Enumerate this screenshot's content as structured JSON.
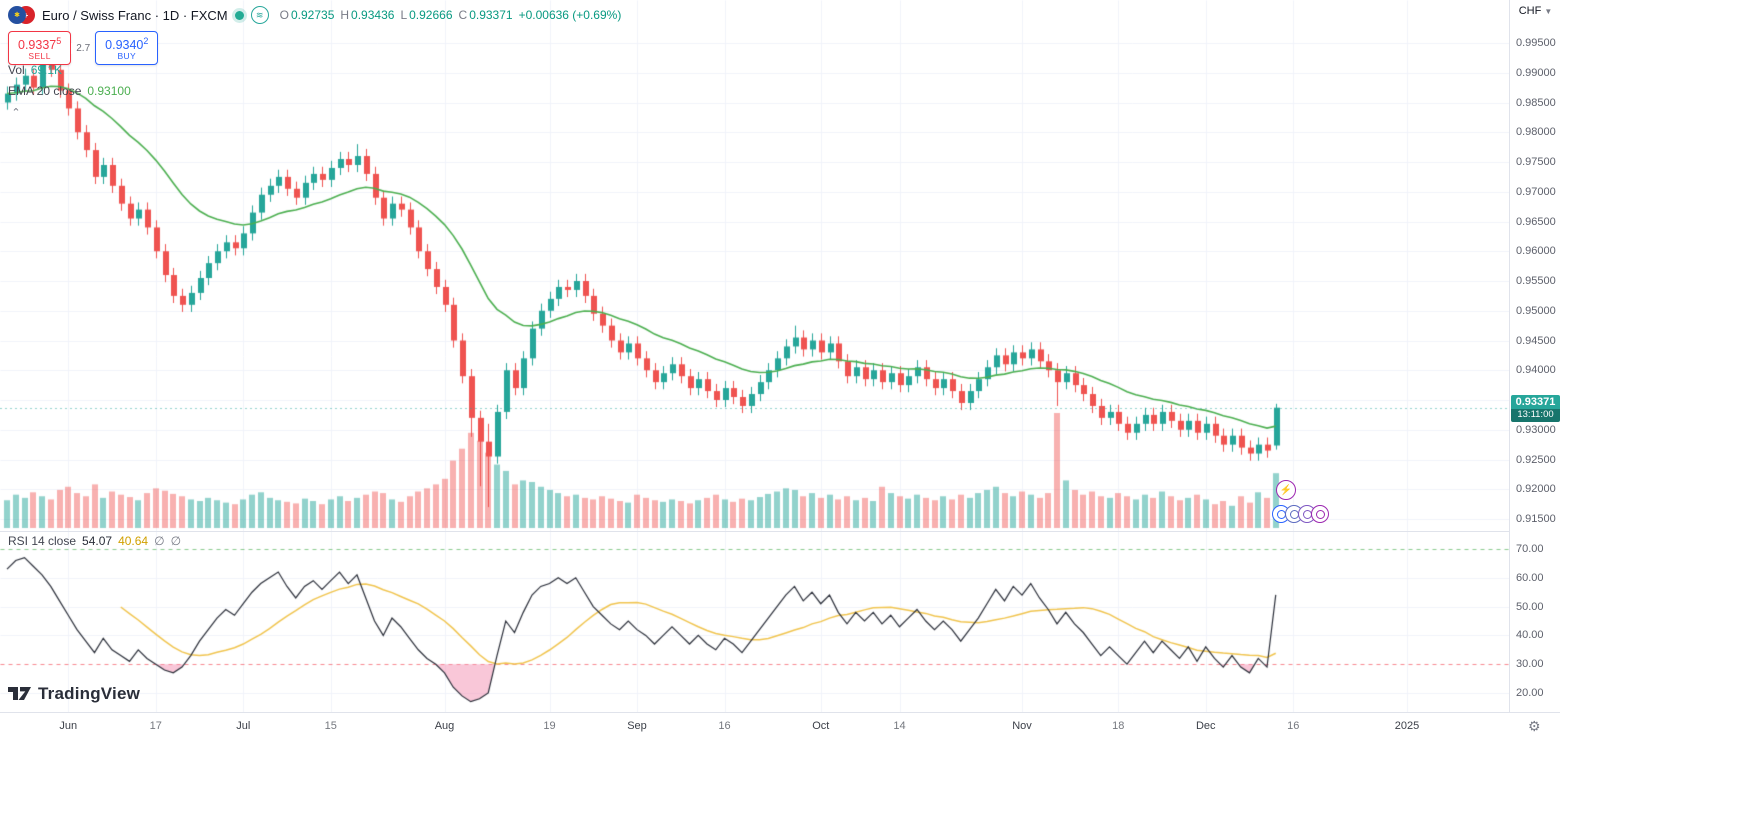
{
  "header": {
    "title": "Euro / Swiss Franc · 1D · FXCM",
    "ohlc": {
      "o_label": "O",
      "o": "0.92735",
      "h_label": "H",
      "h": "0.93436",
      "l_label": "L",
      "l": "0.92666",
      "c_label": "C",
      "c": "0.93371",
      "change": "+0.00636 (+0.69%)"
    },
    "eur_icon_glyph": "✱",
    "chf_icon_glyph": "+",
    "wave_icon_glyph": "≋"
  },
  "trade_panel": {
    "sell_price": "0.9337",
    "sell_sup": "5",
    "sell_label": "SELL",
    "spread": "2.7",
    "buy_price": "0.9340",
    "buy_sup": "2",
    "buy_label": "BUY"
  },
  "legends": {
    "volume": {
      "label": "Vol",
      "value": "69.1K"
    },
    "ema": {
      "label": "EMA 20 close",
      "value": "0.93100"
    },
    "rsi": {
      "label": "RSI 14 close",
      "value": "54.07",
      "ma_value": "40.64",
      "hidden_icon": "∅"
    },
    "collapse_icon": "⌃"
  },
  "price_scale": {
    "currency": "CHF",
    "caret_icon": "▼",
    "labels": [
      "0.99500",
      "0.99000",
      "0.98500",
      "0.98000",
      "0.97500",
      "0.97000",
      "0.96500",
      "0.96000",
      "0.95500",
      "0.95000",
      "0.94500",
      "0.94000",
      "0.93500",
      "0.93000",
      "0.92500",
      "0.92000",
      "0.91500"
    ],
    "current_price": "0.93371",
    "countdown": "13:11:00"
  },
  "rsi_scale": {
    "labels": [
      "70.00",
      "60.00",
      "50.00",
      "40.00",
      "30.00",
      "20.00"
    ]
  },
  "time_axis": {
    "ticks": [
      {
        "label": "Jun",
        "i": 7,
        "major": true
      },
      {
        "label": "17",
        "i": 17,
        "major": false
      },
      {
        "label": "Jul",
        "i": 27,
        "major": true
      },
      {
        "label": "15",
        "i": 37,
        "major": false
      },
      {
        "label": "Aug",
        "i": 50,
        "major": true
      },
      {
        "label": "19",
        "i": 62,
        "major": false
      },
      {
        "label": "Sep",
        "i": 72,
        "major": true
      },
      {
        "label": "16",
        "i": 82,
        "major": false
      },
      {
        "label": "Oct",
        "i": 93,
        "major": true
      },
      {
        "label": "14",
        "i": 102,
        "major": false
      },
      {
        "label": "Nov",
        "i": 116,
        "major": true
      },
      {
        "label": "18",
        "i": 127,
        "major": false
      },
      {
        "label": "Dec",
        "i": 137,
        "major": true
      },
      {
        "label": "16",
        "i": 147,
        "major": false
      },
      {
        "label": "2025",
        "i": 160,
        "major": true
      }
    ]
  },
  "watermark": {
    "text": "TradingView"
  },
  "floating_tools": {
    "flash_icon": "⚡"
  },
  "settings_icon": "⚙",
  "chart_data": {
    "type": "candlestick",
    "title": "Euro / Swiss Franc · 1D · FXCM",
    "symbol": "EUR/CHF",
    "timeframe": "1D",
    "exchange": "FXCM",
    "price_axis_visible_range": [
      0.915,
      0.995
    ],
    "rsi_axis_visible_range": [
      20,
      70
    ],
    "indicators": {
      "ema_period": 20,
      "rsi_period": 14,
      "rsi_ma_period": 14,
      "rsi_upper": 70,
      "rsi_lower": 30
    },
    "colors": {
      "up": "#26a69a",
      "down": "#ef5350",
      "vol_up": "rgba(38,166,154,0.5)",
      "vol_down": "rgba(239,83,80,0.45)",
      "ema": "#4caf50",
      "rsi": "#2a2e39",
      "rsi_ma": "#f0c44e",
      "rsi_upper": "rgba(76,175,80,0.65)",
      "rsi_lower": "rgba(242,54,69,0.6)",
      "rsi_fill": "rgba(244,143,177,0.5)",
      "price_line": "#26a69a",
      "grid": "#f0f3fa",
      "axis_text": "#5d606b",
      "accent_sell": "#f23645",
      "accent_buy": "#2962ff",
      "value_green": "#089981"
    },
    "candles": [
      [
        0.985,
        0.9877,
        0.9838,
        0.9865
      ],
      [
        0.9865,
        0.9892,
        0.9853,
        0.988
      ],
      [
        0.988,
        0.9907,
        0.9868,
        0.9895
      ],
      [
        0.9895,
        0.9907,
        0.9863,
        0.9875
      ],
      [
        0.9875,
        0.9935,
        0.9863,
        0.992
      ],
      [
        0.992,
        0.9932,
        0.9893,
        0.9905
      ],
      [
        0.9905,
        0.9917,
        0.9858,
        0.987
      ],
      [
        0.987,
        0.9882,
        0.9828,
        0.984
      ],
      [
        0.984,
        0.9852,
        0.9788,
        0.98
      ],
      [
        0.98,
        0.9812,
        0.9758,
        0.977
      ],
      [
        0.977,
        0.9782,
        0.9713,
        0.9725
      ],
      [
        0.9725,
        0.9757,
        0.9713,
        0.9745
      ],
      [
        0.9745,
        0.9757,
        0.9698,
        0.971
      ],
      [
        0.971,
        0.9722,
        0.9668,
        0.968
      ],
      [
        0.968,
        0.9692,
        0.9643,
        0.9655
      ],
      [
        0.9655,
        0.9682,
        0.9643,
        0.967
      ],
      [
        0.967,
        0.9682,
        0.9628,
        0.964
      ],
      [
        0.964,
        0.9652,
        0.9588,
        0.96
      ],
      [
        0.96,
        0.9612,
        0.9548,
        0.956
      ],
      [
        0.956,
        0.9572,
        0.9513,
        0.9525
      ],
      [
        0.9525,
        0.9537,
        0.9498,
        0.951
      ],
      [
        0.951,
        0.9542,
        0.9498,
        0.953
      ],
      [
        0.953,
        0.9567,
        0.9518,
        0.9555
      ],
      [
        0.9555,
        0.9592,
        0.9543,
        0.958
      ],
      [
        0.958,
        0.9612,
        0.9568,
        0.96
      ],
      [
        0.96,
        0.9627,
        0.9588,
        0.9615
      ],
      [
        0.9615,
        0.9627,
        0.9593,
        0.9605
      ],
      [
        0.9605,
        0.9642,
        0.9593,
        0.963
      ],
      [
        0.963,
        0.9677,
        0.9618,
        0.9665
      ],
      [
        0.9665,
        0.9707,
        0.9653,
        0.9695
      ],
      [
        0.9695,
        0.9722,
        0.9683,
        0.971
      ],
      [
        0.971,
        0.9737,
        0.9698,
        0.9725
      ],
      [
        0.9725,
        0.9737,
        0.9693,
        0.9705
      ],
      [
        0.9705,
        0.9717,
        0.9678,
        0.969
      ],
      [
        0.969,
        0.9727,
        0.9678,
        0.9715
      ],
      [
        0.9715,
        0.9742,
        0.9703,
        0.973
      ],
      [
        0.973,
        0.9742,
        0.9708,
        0.972
      ],
      [
        0.972,
        0.9752,
        0.9708,
        0.974
      ],
      [
        0.974,
        0.9767,
        0.9728,
        0.9755
      ],
      [
        0.9755,
        0.9767,
        0.9733,
        0.9745
      ],
      [
        0.9745,
        0.978,
        0.9733,
        0.976
      ],
      [
        0.976,
        0.9772,
        0.9718,
        0.973
      ],
      [
        0.973,
        0.9742,
        0.9678,
        0.969
      ],
      [
        0.969,
        0.9702,
        0.9643,
        0.9655
      ],
      [
        0.9655,
        0.9692,
        0.9643,
        0.968
      ],
      [
        0.968,
        0.9692,
        0.9658,
        0.967
      ],
      [
        0.967,
        0.9682,
        0.9628,
        0.964
      ],
      [
        0.964,
        0.9652,
        0.9588,
        0.96
      ],
      [
        0.96,
        0.9612,
        0.9558,
        0.957
      ],
      [
        0.957,
        0.9582,
        0.9528,
        0.954
      ],
      [
        0.954,
        0.9552,
        0.9498,
        0.951
      ],
      [
        0.951,
        0.9522,
        0.9438,
        0.945
      ],
      [
        0.945,
        0.9462,
        0.9378,
        0.939
      ],
      [
        0.939,
        0.9402,
        0.9288,
        0.932
      ],
      [
        0.932,
        0.9332,
        0.9205,
        0.928
      ],
      [
        0.928,
        0.931,
        0.917,
        0.9255
      ],
      [
        0.9255,
        0.9342,
        0.9243,
        0.933
      ],
      [
        0.933,
        0.9412,
        0.9318,
        0.94
      ],
      [
        0.94,
        0.9412,
        0.9358,
        0.937
      ],
      [
        0.937,
        0.9432,
        0.9358,
        0.942
      ],
      [
        0.942,
        0.9482,
        0.9408,
        0.947
      ],
      [
        0.947,
        0.9512,
        0.9458,
        0.95
      ],
      [
        0.95,
        0.9532,
        0.9488,
        0.952
      ],
      [
        0.952,
        0.9552,
        0.9508,
        0.954
      ],
      [
        0.954,
        0.9552,
        0.9523,
        0.9535
      ],
      [
        0.9535,
        0.9562,
        0.9523,
        0.955
      ],
      [
        0.955,
        0.9562,
        0.9513,
        0.9525
      ],
      [
        0.9525,
        0.9537,
        0.9483,
        0.9495
      ],
      [
        0.9495,
        0.9507,
        0.9463,
        0.9475
      ],
      [
        0.9475,
        0.9487,
        0.9438,
        0.945
      ],
      [
        0.945,
        0.9462,
        0.9418,
        0.943
      ],
      [
        0.943,
        0.9457,
        0.9418,
        0.9445
      ],
      [
        0.9445,
        0.9457,
        0.9408,
        0.942
      ],
      [
        0.942,
        0.9432,
        0.9388,
        0.94
      ],
      [
        0.94,
        0.9412,
        0.9368,
        0.938
      ],
      [
        0.938,
        0.9407,
        0.9368,
        0.9395
      ],
      [
        0.9395,
        0.9422,
        0.9383,
        0.941
      ],
      [
        0.941,
        0.9422,
        0.9378,
        0.939
      ],
      [
        0.939,
        0.9402,
        0.9358,
        0.937
      ],
      [
        0.937,
        0.9397,
        0.9358,
        0.9385
      ],
      [
        0.9385,
        0.9397,
        0.9353,
        0.9365
      ],
      [
        0.9365,
        0.9377,
        0.9338,
        0.935
      ],
      [
        0.935,
        0.9382,
        0.9338,
        0.937
      ],
      [
        0.937,
        0.9382,
        0.9343,
        0.9355
      ],
      [
        0.9355,
        0.9367,
        0.9328,
        0.934
      ],
      [
        0.934,
        0.9372,
        0.9328,
        0.936
      ],
      [
        0.936,
        0.9392,
        0.9348,
        0.938
      ],
      [
        0.938,
        0.9412,
        0.9368,
        0.94
      ],
      [
        0.94,
        0.9432,
        0.9388,
        0.942
      ],
      [
        0.942,
        0.9452,
        0.9408,
        0.944
      ],
      [
        0.944,
        0.9475,
        0.9428,
        0.9455
      ],
      [
        0.9455,
        0.9467,
        0.9423,
        0.9435
      ],
      [
        0.9435,
        0.9462,
        0.9423,
        0.945
      ],
      [
        0.945,
        0.9462,
        0.9418,
        0.943
      ],
      [
        0.943,
        0.9457,
        0.9418,
        0.9445
      ],
      [
        0.9445,
        0.9457,
        0.9403,
        0.9415
      ],
      [
        0.9415,
        0.9427,
        0.9378,
        0.939
      ],
      [
        0.939,
        0.9417,
        0.9378,
        0.9405
      ],
      [
        0.9405,
        0.9417,
        0.9373,
        0.9385
      ],
      [
        0.9385,
        0.9412,
        0.9373,
        0.94
      ],
      [
        0.94,
        0.9412,
        0.9368,
        0.938
      ],
      [
        0.938,
        0.9407,
        0.9368,
        0.9395
      ],
      [
        0.9395,
        0.9407,
        0.9363,
        0.9375
      ],
      [
        0.9375,
        0.9402,
        0.9363,
        0.939
      ],
      [
        0.939,
        0.9417,
        0.9378,
        0.9405
      ],
      [
        0.9405,
        0.9417,
        0.9373,
        0.9385
      ],
      [
        0.9385,
        0.9397,
        0.9358,
        0.937
      ],
      [
        0.937,
        0.9397,
        0.9358,
        0.9385
      ],
      [
        0.9385,
        0.9397,
        0.9353,
        0.9365
      ],
      [
        0.9365,
        0.9377,
        0.9333,
        0.9345
      ],
      [
        0.9345,
        0.9377,
        0.9333,
        0.9365
      ],
      [
        0.9365,
        0.9397,
        0.9353,
        0.9385
      ],
      [
        0.9385,
        0.9417,
        0.9373,
        0.9405
      ],
      [
        0.9405,
        0.9437,
        0.9393,
        0.9425
      ],
      [
        0.9425,
        0.9437,
        0.9398,
        0.941
      ],
      [
        0.941,
        0.9442,
        0.9398,
        0.943
      ],
      [
        0.943,
        0.9442,
        0.9408,
        0.942
      ],
      [
        0.942,
        0.9447,
        0.9408,
        0.9435
      ],
      [
        0.9435,
        0.9447,
        0.9403,
        0.9415
      ],
      [
        0.9415,
        0.9427,
        0.9388,
        0.94
      ],
      [
        0.94,
        0.9412,
        0.934,
        0.938
      ],
      [
        0.938,
        0.9407,
        0.9368,
        0.9395
      ],
      [
        0.9395,
        0.9407,
        0.9363,
        0.9375
      ],
      [
        0.9375,
        0.9387,
        0.9348,
        0.936
      ],
      [
        0.936,
        0.9372,
        0.9328,
        0.934
      ],
      [
        0.934,
        0.9352,
        0.9308,
        0.932
      ],
      [
        0.932,
        0.9342,
        0.9308,
        0.933
      ],
      [
        0.933,
        0.9342,
        0.9298,
        0.931
      ],
      [
        0.931,
        0.9322,
        0.9283,
        0.9295
      ],
      [
        0.9295,
        0.9322,
        0.9283,
        0.931
      ],
      [
        0.931,
        0.9337,
        0.9298,
        0.9325
      ],
      [
        0.9325,
        0.9337,
        0.9298,
        0.931
      ],
      [
        0.931,
        0.9342,
        0.9298,
        0.933
      ],
      [
        0.933,
        0.9342,
        0.9303,
        0.9315
      ],
      [
        0.9315,
        0.9327,
        0.9288,
        0.93
      ],
      [
        0.93,
        0.9327,
        0.9288,
        0.9315
      ],
      [
        0.9315,
        0.9327,
        0.9283,
        0.9295
      ],
      [
        0.9295,
        0.9322,
        0.9283,
        0.931
      ],
      [
        0.931,
        0.9322,
        0.9278,
        0.929
      ],
      [
        0.929,
        0.9302,
        0.9263,
        0.9275
      ],
      [
        0.9275,
        0.9302,
        0.9263,
        0.929
      ],
      [
        0.929,
        0.9302,
        0.9258,
        0.927
      ],
      [
        0.927,
        0.9282,
        0.9248,
        0.926
      ],
      [
        0.926,
        0.9287,
        0.9248,
        0.9275
      ],
      [
        0.9275,
        0.9287,
        0.9253,
        0.9265
      ],
      [
        0.92735,
        0.93436,
        0.92666,
        0.93371
      ]
    ],
    "volume": [
      35,
      42,
      38,
      45,
      40,
      36,
      48,
      52,
      44,
      40,
      55,
      38,
      46,
      42,
      39,
      35,
      44,
      50,
      47,
      43,
      40,
      36,
      34,
      38,
      35,
      32,
      30,
      36,
      42,
      45,
      38,
      35,
      33,
      31,
      37,
      34,
      30,
      36,
      40,
      34,
      38,
      42,
      46,
      44,
      36,
      33,
      40,
      46,
      50,
      55,
      62,
      85,
      100,
      120,
      110,
      95,
      80,
      72,
      55,
      60,
      58,
      52,
      48,
      44,
      40,
      42,
      38,
      36,
      40,
      37,
      34,
      32,
      42,
      38,
      35,
      33,
      36,
      34,
      31,
      35,
      38,
      42,
      36,
      33,
      37,
      35,
      39,
      43,
      46,
      50,
      48,
      40,
      44,
      38,
      42,
      36,
      40,
      35,
      38,
      34,
      52,
      44,
      40,
      37,
      42,
      38,
      35,
      40,
      36,
      42,
      38,
      44,
      48,
      52,
      44,
      40,
      46,
      42,
      38,
      44,
      145,
      60,
      48,
      42,
      46,
      40,
      38,
      44,
      40,
      36,
      42,
      38,
      46,
      40,
      35,
      38,
      42,
      36,
      30,
      34,
      28,
      40,
      32,
      45,
      38,
      69.1
    ],
    "volume_unit": "K",
    "rsi": [
      63,
      66,
      67,
      64,
      61,
      57,
      52,
      47,
      42,
      38,
      34,
      39,
      35,
      33,
      31,
      35,
      32,
      30,
      28,
      27,
      29,
      33,
      38,
      42,
      46,
      49,
      47,
      51,
      55,
      58,
      60,
      62,
      57,
      53,
      57,
      59,
      56,
      59,
      62,
      58,
      61,
      53,
      45,
      40,
      46,
      43,
      39,
      35,
      32,
      30,
      27,
      22,
      19,
      17,
      18,
      20,
      33,
      45,
      41,
      48,
      54,
      57,
      58,
      60,
      58,
      60,
      55,
      50,
      47,
      44,
      42,
      45,
      42,
      40,
      37,
      40,
      43,
      40,
      37,
      40,
      37,
      35,
      39,
      37,
      34,
      38,
      42,
      46,
      50,
      54,
      57,
      52,
      55,
      51,
      54,
      48,
      44,
      48,
      45,
      48,
      44,
      47,
      43,
      46,
      49,
      45,
      42,
      45,
      42,
      38,
      42,
      46,
      51,
      56,
      52,
      57,
      54,
      58,
      53,
      49,
      44,
      48,
      44,
      41,
      37,
      33,
      36,
      33,
      30,
      34,
      38,
      34,
      38,
      35,
      32,
      36,
      31,
      36,
      32,
      29,
      33,
      29,
      27,
      32,
      29,
      54.07
    ]
  }
}
